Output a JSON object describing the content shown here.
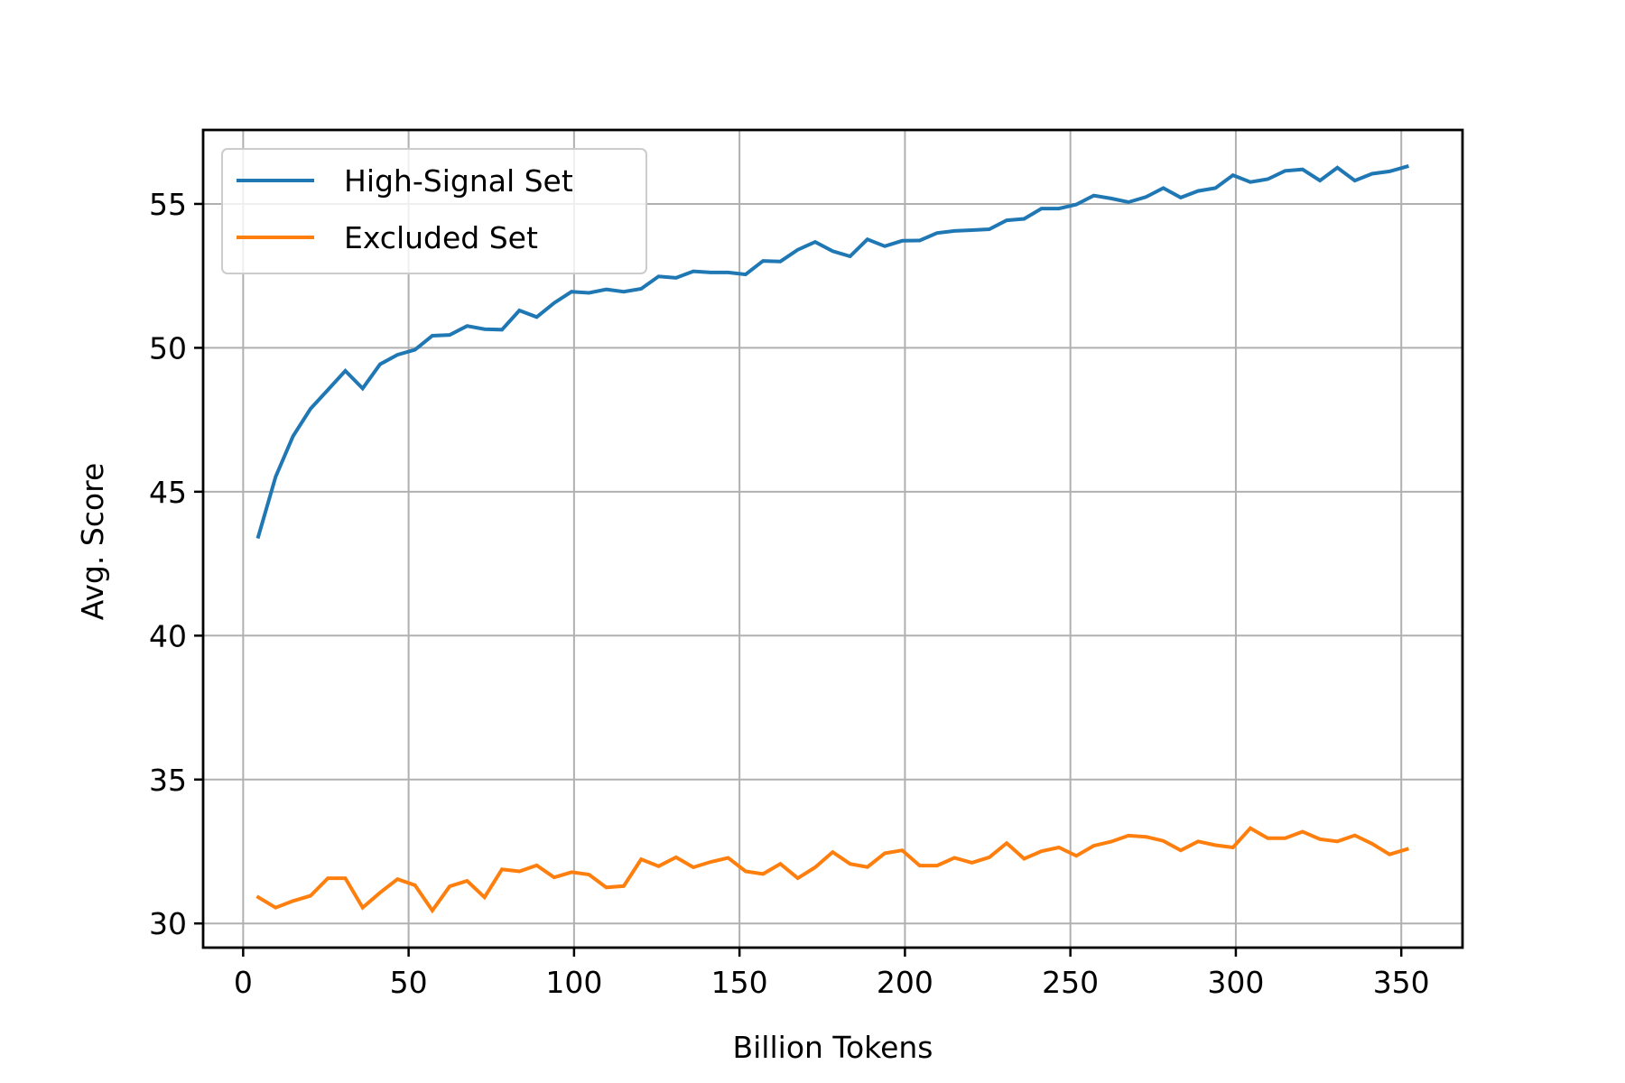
{
  "chart_data": {
    "type": "line",
    "title": "",
    "xlabel": "Billion Tokens",
    "ylabel": "Avg. Score",
    "xlim": [
      -12.1,
      368.5
    ],
    "ylim": [
      29.16,
      57.57
    ],
    "xticks": [
      0,
      50,
      100,
      150,
      200,
      250,
      300,
      350
    ],
    "yticks": [
      30,
      35,
      40,
      45,
      50,
      55
    ],
    "grid": true,
    "legend_position": "upper left",
    "x_start": 4.56,
    "x_step": 5.26,
    "series": [
      {
        "name": "High-Signal Set",
        "color": "#1f77b4",
        "values": [
          43.44,
          45.52,
          46.93,
          47.88,
          48.54,
          49.2,
          48.59,
          49.43,
          49.76,
          49.93,
          50.42,
          50.45,
          50.76,
          50.65,
          50.63,
          51.3,
          51.07,
          51.56,
          51.95,
          51.91,
          52.03,
          51.95,
          52.05,
          52.48,
          52.43,
          52.66,
          52.62,
          52.62,
          52.55,
          53.02,
          53.0,
          53.41,
          53.68,
          53.36,
          53.18,
          53.77,
          53.53,
          53.72,
          53.73,
          53.99,
          54.06,
          54.09,
          54.12,
          54.43,
          54.48,
          54.84,
          54.84,
          54.98,
          55.29,
          55.19,
          55.06,
          55.24,
          55.55,
          55.22,
          55.45,
          55.55,
          56.0,
          55.76,
          55.86,
          56.15,
          56.2,
          55.81,
          56.26,
          55.81,
          56.05,
          56.13,
          56.3
        ]
      },
      {
        "name": "Excluded Set",
        "color": "#ff7f0e",
        "values": [
          30.91,
          30.55,
          30.78,
          30.96,
          31.57,
          31.57,
          30.55,
          31.07,
          31.54,
          31.33,
          30.45,
          31.29,
          31.48,
          30.91,
          31.88,
          31.81,
          32.02,
          31.6,
          31.78,
          31.7,
          31.25,
          31.3,
          32.23,
          31.99,
          32.3,
          31.95,
          32.14,
          32.28,
          31.81,
          31.72,
          32.07,
          31.57,
          31.95,
          32.48,
          32.07,
          31.96,
          32.44,
          32.54,
          32.01,
          32.01,
          32.28,
          32.11,
          32.3,
          32.79,
          32.25,
          32.51,
          32.64,
          32.35,
          32.7,
          32.84,
          33.05,
          33.01,
          32.87,
          32.54,
          32.85,
          32.72,
          32.64,
          33.31,
          32.96,
          32.96,
          33.19,
          32.93,
          32.85,
          33.06,
          32.77,
          32.4,
          32.58
        ]
      }
    ]
  },
  "legend": {
    "items": [
      {
        "label": "High-Signal Set",
        "color": "#1f77b4"
      },
      {
        "label": "Excluded Set",
        "color": "#ff7f0e"
      }
    ]
  },
  "axes": {
    "xlabel": "Billion Tokens",
    "ylabel": "Avg. Score",
    "xtick_labels": [
      "0",
      "50",
      "100",
      "150",
      "200",
      "250",
      "300",
      "350"
    ],
    "ytick_labels": [
      "30",
      "35",
      "40",
      "45",
      "50",
      "55"
    ]
  }
}
